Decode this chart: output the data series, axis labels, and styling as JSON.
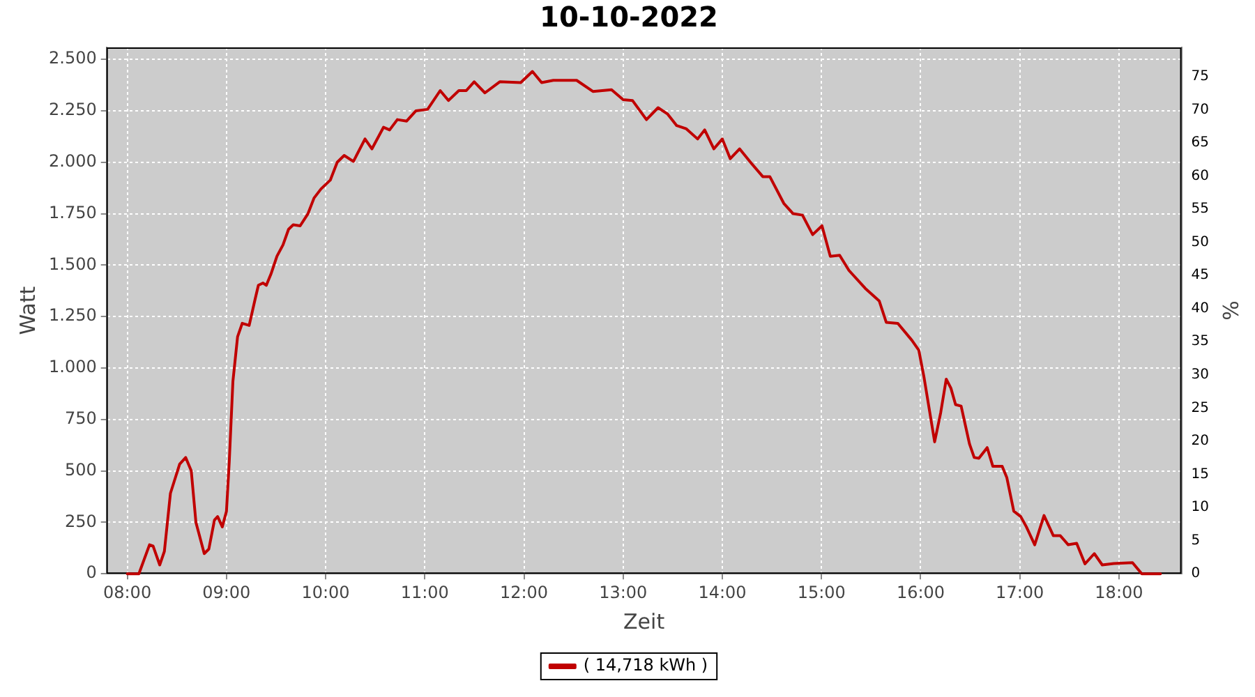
{
  "chart_data": {
    "type": "line",
    "title": "10-10-2022",
    "xlabel": "Zeit",
    "ylabel": "Watt",
    "y2label": "%",
    "xlim": [
      7.79,
      18.63
    ],
    "xticks": [
      {
        "value": 8,
        "label": "08:00"
      },
      {
        "value": 9,
        "label": "09:00"
      },
      {
        "value": 10,
        "label": "10:00"
      },
      {
        "value": 11,
        "label": "11:00"
      },
      {
        "value": 12,
        "label": "12:00"
      },
      {
        "value": 13,
        "label": "13:00"
      },
      {
        "value": 14,
        "label": "14:00"
      },
      {
        "value": 15,
        "label": "15:00"
      },
      {
        "value": 16,
        "label": "16:00"
      },
      {
        "value": 17,
        "label": "17:00"
      },
      {
        "value": 18,
        "label": "18:00"
      }
    ],
    "ylim": [
      0,
      2558
    ],
    "yticks": [
      0,
      250,
      500,
      750,
      {
        "value": 1000,
        "label": "1.000"
      },
      {
        "value": 1250,
        "label": "1.250"
      },
      {
        "value": 1500,
        "label": "1.500"
      },
      {
        "value": 1750,
        "label": "1.750"
      },
      {
        "value": 2000,
        "label": "2.000"
      },
      {
        "value": 2250,
        "label": "2.250"
      },
      {
        "value": 2500,
        "label": "2.500"
      }
    ],
    "y2lim": [
      0,
      79.4
    ],
    "y2ticks": [
      0,
      5,
      10,
      15,
      20,
      25,
      30,
      35,
      40,
      45,
      50,
      55,
      60,
      65,
      70,
      75
    ],
    "grid": true,
    "legend": "bottom",
    "marker": "none",
    "line_style": "solid",
    "series": [
      {
        "name": "( 14,718 kWh )",
        "color": "#c00000",
        "x": [
          8.0,
          8.117,
          8.224,
          8.26,
          8.327,
          8.374,
          8.435,
          8.528,
          8.589,
          8.645,
          8.692,
          8.776,
          8.822,
          8.879,
          8.911,
          8.958,
          9.0,
          9.028,
          9.065,
          9.112,
          9.159,
          9.229,
          9.29,
          9.322,
          9.369,
          9.402,
          9.449,
          9.509,
          9.57,
          9.626,
          9.673,
          9.743,
          9.822,
          9.883,
          9.953,
          10.047,
          10.117,
          10.187,
          10.28,
          10.397,
          10.467,
          10.584,
          10.645,
          10.723,
          10.817,
          10.911,
          11.028,
          11.155,
          11.239,
          11.343,
          11.418,
          11.498,
          11.606,
          11.756,
          11.967,
          12.085,
          12.178,
          12.296,
          12.531,
          12.695,
          12.883,
          13.0,
          13.094,
          13.235,
          13.352,
          13.446,
          13.54,
          13.634,
          13.751,
          13.822,
          13.915,
          14.0,
          14.08,
          14.174,
          14.291,
          14.408,
          14.479,
          14.62,
          14.714,
          14.808,
          14.911,
          15.005,
          15.089,
          15.183,
          15.277,
          15.441,
          15.582,
          15.653,
          15.77,
          15.911,
          15.981,
          16.033,
          16.141,
          16.202,
          16.258,
          16.305,
          16.352,
          16.408,
          16.493,
          16.54,
          16.587,
          16.671,
          16.728,
          16.822,
          16.869,
          16.939,
          17.009,
          17.066,
          17.15,
          17.244,
          17.338,
          17.408,
          17.488,
          17.573,
          17.657,
          17.751,
          17.831,
          17.948,
          18.136,
          18.23,
          18.418
        ],
        "values": [
          0,
          0,
          141,
          135,
          43,
          109,
          391,
          533,
          565,
          500,
          250,
          98,
          120,
          261,
          278,
          228,
          304,
          543,
          935,
          1152,
          1217,
          1207,
          1337,
          1402,
          1413,
          1402,
          1457,
          1543,
          1598,
          1674,
          1696,
          1691,
          1750,
          1826,
          1870,
          1913,
          2000,
          2033,
          2004,
          2113,
          2065,
          2170,
          2157,
          2207,
          2200,
          2250,
          2257,
          2348,
          2300,
          2348,
          2348,
          2391,
          2337,
          2391,
          2387,
          2441,
          2387,
          2398,
          2398,
          2344,
          2352,
          2304,
          2300,
          2207,
          2265,
          2235,
          2178,
          2163,
          2113,
          2157,
          2065,
          2113,
          2017,
          2065,
          1996,
          1930,
          1930,
          1800,
          1750,
          1743,
          1648,
          1691,
          1543,
          1548,
          1474,
          1387,
          1326,
          1222,
          1217,
          1135,
          1087,
          957,
          641,
          783,
          946,
          902,
          822,
          815,
          630,
          565,
          561,
          613,
          522,
          522,
          467,
          304,
          278,
          228,
          141,
          283,
          185,
          185,
          141,
          148,
          48,
          98,
          43,
          50,
          54,
          0,
          0
        ]
      }
    ]
  }
}
